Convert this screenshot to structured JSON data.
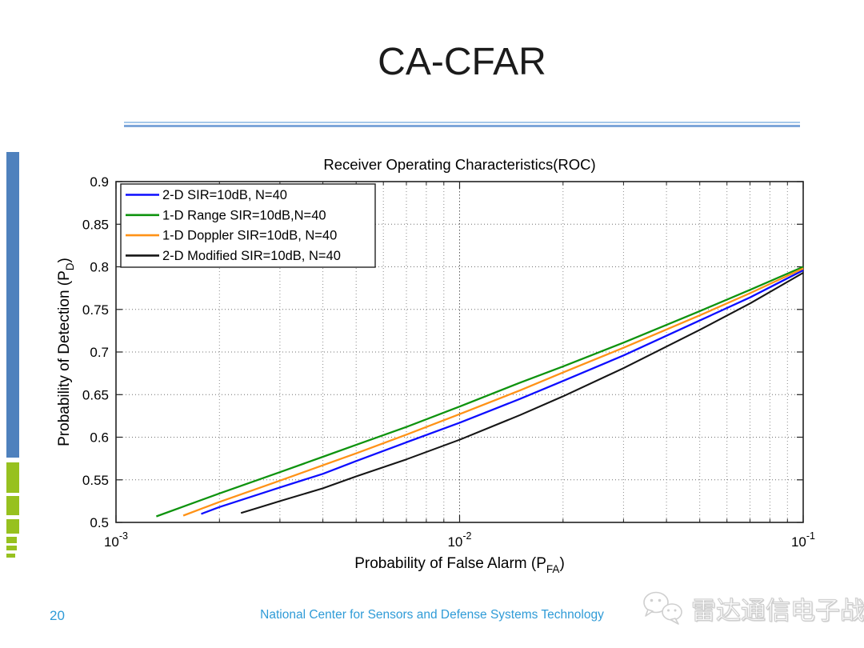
{
  "slide": {
    "title": "CA-CFAR",
    "page_number": "20",
    "footer_text": "National Center for Sensors and Defense Systems Technology",
    "watermark": {
      "icon": "wechat-icon",
      "text": "雷达通信电子战"
    },
    "accent_colors": {
      "sidebar_blue": "#4f81bd",
      "sidebar_green": "#97c11f",
      "divider_blue_light": "#a5c8ea",
      "divider_blue": "#7ea6d9",
      "footer_blue": "#2f9bd7"
    }
  },
  "chart_data": {
    "type": "line",
    "title": "Receiver Operating Characteristics(ROC)",
    "xlabel": "Probability of False Alarm (P_FA)",
    "xlabel_parts": {
      "pre": "Probability of False Alarm (P",
      "sub": "FA",
      "post": ")"
    },
    "ylabel": "Probability of Detection (P_D)",
    "ylabel_parts": {
      "pre": "Probability of Detection (P",
      "sub": "D",
      "post": ")"
    },
    "xscale": "log",
    "xlim": [
      0.001,
      0.1
    ],
    "ylim": [
      0.5,
      0.9
    ],
    "xticks": [
      0.001,
      0.01,
      0.1
    ],
    "xtick_labels": [
      "10^-3",
      "10^-2",
      "10^-1"
    ],
    "yticks": [
      0.5,
      0.55,
      0.6,
      0.65,
      0.7,
      0.75,
      0.8,
      0.85,
      0.9
    ],
    "ytick_labels": [
      "0.5",
      "0.55",
      "0.6",
      "0.65",
      "0.7",
      "0.75",
      "0.8",
      "0.85",
      "0.9"
    ],
    "grid": {
      "major": true,
      "minor": true,
      "style": "dotted"
    },
    "legend": {
      "position": "top-left",
      "border_color": "#222222",
      "background": "#ffffff"
    },
    "series": [
      {
        "name": "2-D SIR=10dB, N=40",
        "color": "#0d0dff",
        "points": [
          [
            0.00177,
            0.51
          ],
          [
            0.002,
            0.518
          ],
          [
            0.003,
            0.541
          ],
          [
            0.004,
            0.557
          ],
          [
            0.005,
            0.572
          ],
          [
            0.007,
            0.594
          ],
          [
            0.01,
            0.617
          ],
          [
            0.015,
            0.645
          ],
          [
            0.02,
            0.666
          ],
          [
            0.03,
            0.696
          ],
          [
            0.05,
            0.737
          ],
          [
            0.07,
            0.764
          ],
          [
            0.1,
            0.796
          ]
        ]
      },
      {
        "name": "1-D Range SIR=10dB,N=40",
        "color": "#0e930e",
        "points": [
          [
            0.00131,
            0.507
          ],
          [
            0.002,
            0.534
          ],
          [
            0.003,
            0.559
          ],
          [
            0.004,
            0.577
          ],
          [
            0.005,
            0.591
          ],
          [
            0.007,
            0.612
          ],
          [
            0.01,
            0.636
          ],
          [
            0.015,
            0.664
          ],
          [
            0.02,
            0.683
          ],
          [
            0.03,
            0.711
          ],
          [
            0.05,
            0.748
          ],
          [
            0.07,
            0.773
          ],
          [
            0.1,
            0.8
          ]
        ]
      },
      {
        "name": "1-D Doppler SIR=10dB, N=40",
        "color": "#ff9216",
        "points": [
          [
            0.00157,
            0.508
          ],
          [
            0.002,
            0.524
          ],
          [
            0.003,
            0.549
          ],
          [
            0.004,
            0.567
          ],
          [
            0.005,
            0.581
          ],
          [
            0.007,
            0.603
          ],
          [
            0.01,
            0.627
          ],
          [
            0.015,
            0.655
          ],
          [
            0.02,
            0.676
          ],
          [
            0.03,
            0.705
          ],
          [
            0.05,
            0.743
          ],
          [
            0.07,
            0.769
          ],
          [
            0.1,
            0.798
          ]
        ]
      },
      {
        "name": "2-D Modified SIR=10dB, N=40",
        "color": "#161616",
        "points": [
          [
            0.00231,
            0.511
          ],
          [
            0.003,
            0.525
          ],
          [
            0.004,
            0.54
          ],
          [
            0.005,
            0.554
          ],
          [
            0.007,
            0.574
          ],
          [
            0.01,
            0.597
          ],
          [
            0.015,
            0.626
          ],
          [
            0.02,
            0.648
          ],
          [
            0.03,
            0.681
          ],
          [
            0.05,
            0.726
          ],
          [
            0.07,
            0.757
          ],
          [
            0.1,
            0.793
          ]
        ]
      }
    ]
  }
}
